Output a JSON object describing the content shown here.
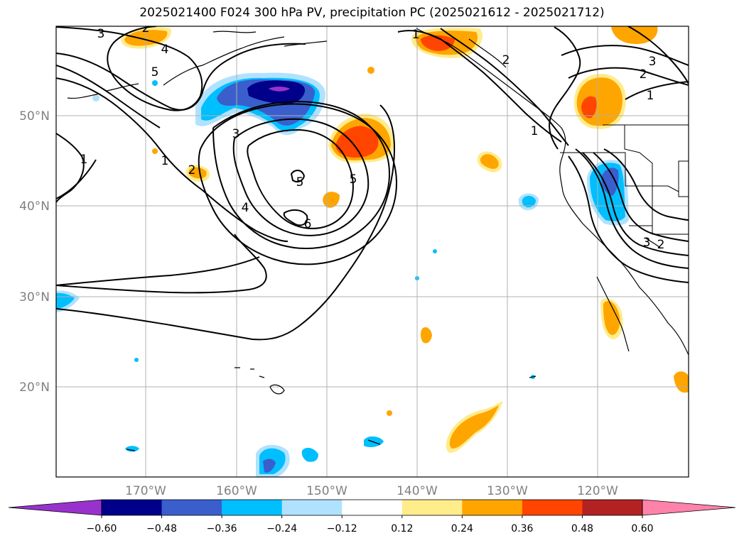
{
  "title": "2025021400 F024 300 hPa PV, precipitation PC (2025021612 - 2025021712)",
  "longitude_labels": [
    "170°W",
    "160°W",
    "150°W",
    "140°W",
    "130°W",
    "120°W"
  ],
  "latitude_labels": [
    "50°N",
    "40°N",
    "30°N",
    "20°N"
  ],
  "contour_labels": [
    "3",
    "2",
    "4",
    "5",
    "1",
    "1",
    "2",
    "3",
    "5",
    "5",
    "4",
    "6",
    "1",
    "2",
    "1",
    "3",
    "2",
    "1",
    "2",
    "3"
  ],
  "colorbar": {
    "tick_labels": [
      "−0.60",
      "−0.48",
      "−0.36",
      "−0.24",
      "−0.12",
      "0.12",
      "0.24",
      "0.36",
      "0.48",
      "0.60"
    ],
    "colors": [
      "#9932cc",
      "#00008b",
      "#3a5fcd",
      "#00bfff",
      "#b0e2ff",
      "#ffffff",
      "#ffec8b",
      "#ffa500",
      "#ff4500",
      "#b22222",
      "#ff82ab"
    ]
  }
}
